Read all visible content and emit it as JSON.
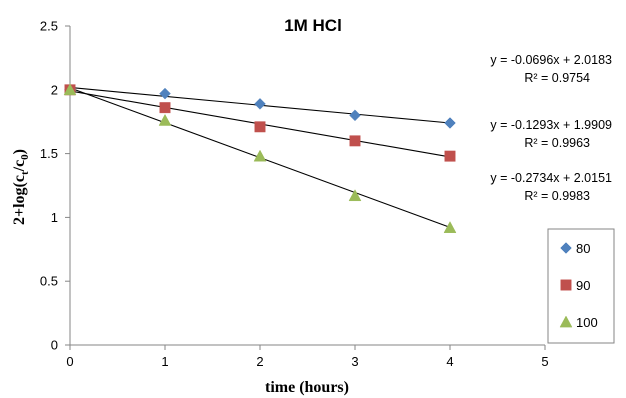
{
  "chart_data": {
    "type": "scatter",
    "title": "1M HCl",
    "xlabel": "time (hours)",
    "ylabel_main": "2+log(c",
    "ylabel_sub1": "t",
    "ylabel_mid": "/c",
    "ylabel_sub2": "0",
    "ylabel_end": ")",
    "xlim": [
      0,
      5
    ],
    "ylim": [
      0,
      2.5
    ],
    "x_ticks": [
      "0",
      "1",
      "2",
      "3",
      "4",
      "5"
    ],
    "y_ticks": [
      "0",
      "0.5",
      "1",
      "1.5",
      "2",
      "2.5"
    ],
    "grid": false,
    "legend_position": "right",
    "series": [
      {
        "name": "80",
        "marker": "diamond",
        "color": "#4f81bd",
        "x": [
          0,
          1,
          2,
          3,
          4
        ],
        "y": [
          2.0,
          1.97,
          1.89,
          1.8,
          1.74
        ],
        "trend": {
          "slope": -0.0696,
          "intercept": 2.0183
        },
        "equation": "y = -0.0696x + 2.0183",
        "r2": "R² = 0.9754"
      },
      {
        "name": "90",
        "marker": "square",
        "color": "#c0504d",
        "x": [
          0,
          1,
          2,
          3,
          4
        ],
        "y": [
          2.0,
          1.86,
          1.71,
          1.6,
          1.48
        ],
        "trend": {
          "slope": -0.1293,
          "intercept": 1.9909
        },
        "equation": "y = -0.1293x + 1.9909",
        "r2": "R² = 0.9963"
      },
      {
        "name": "100",
        "marker": "triangle",
        "color": "#9bbb59",
        "x": [
          0,
          1,
          2,
          3,
          4
        ],
        "y": [
          2.0,
          1.76,
          1.48,
          1.17,
          0.92
        ],
        "trend": {
          "slope": -0.2734,
          "intercept": 2.0151
        },
        "equation": "y = -0.2734x + 2.0151",
        "r2": "R² = 0.9983"
      }
    ]
  }
}
